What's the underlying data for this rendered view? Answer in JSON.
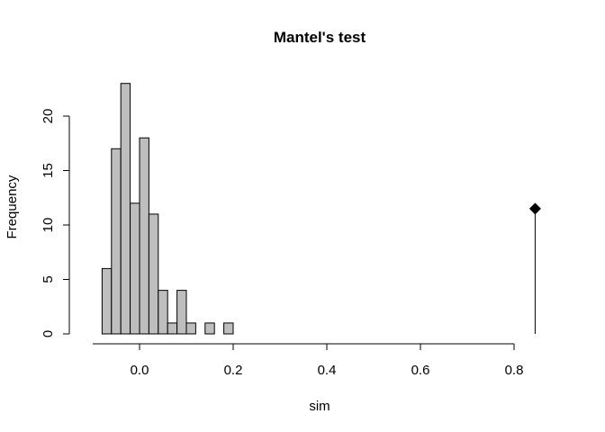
{
  "chart_data": {
    "type": "bar",
    "title": "Mantel's test",
    "xlabel": "sim",
    "ylabel": "Frequency",
    "xlim": [
      -0.16,
      0.86
    ],
    "ylim": [
      0,
      23
    ],
    "xticks": [
      0.0,
      0.2,
      0.4,
      0.6,
      0.8
    ],
    "xtick_labels": [
      "0.0",
      "0.2",
      "0.4",
      "0.6",
      "0.8"
    ],
    "yticks": [
      0,
      5,
      10,
      15,
      20
    ],
    "ytick_labels": [
      "0",
      "5",
      "10",
      "15",
      "20"
    ],
    "bin_width": 0.02,
    "bin_start": -0.08,
    "counts": [
      6,
      17,
      23,
      12,
      18,
      11,
      4,
      1,
      4,
      1,
      0,
      1,
      0,
      1
    ],
    "observed": {
      "x": 0.845,
      "y": 11.5,
      "marker": "diamond"
    },
    "colors": {
      "bar_fill": "#bebebe",
      "bar_stroke": "#000000",
      "marker": "#000000"
    }
  }
}
